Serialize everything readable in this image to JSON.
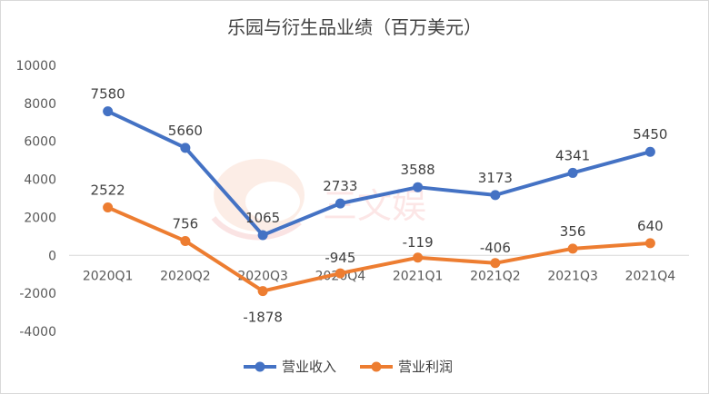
{
  "chart_data": {
    "type": "line",
    "title": "乐园与衍生品业绩（百万美元）",
    "categories": [
      "2020Q1",
      "2020Q2",
      "2020Q3",
      "2020Q4",
      "2021Q1",
      "2021Q2",
      "2021Q3",
      "2021Q4"
    ],
    "ylim": [
      -4000,
      10000
    ],
    "yticks": [
      -4000,
      -2000,
      0,
      2000,
      4000,
      6000,
      8000,
      10000
    ],
    "grid": false,
    "legend": "bottom",
    "series": [
      {
        "name": "营业收入",
        "color": "#4472C4",
        "values": [
          7580,
          5660,
          1065,
          2733,
          3588,
          3173,
          4341,
          5450
        ]
      },
      {
        "name": "营业利润",
        "color": "#ED7D31",
        "values": [
          2522,
          756,
          -1878,
          -945,
          -119,
          -406,
          356,
          640
        ]
      }
    ]
  }
}
